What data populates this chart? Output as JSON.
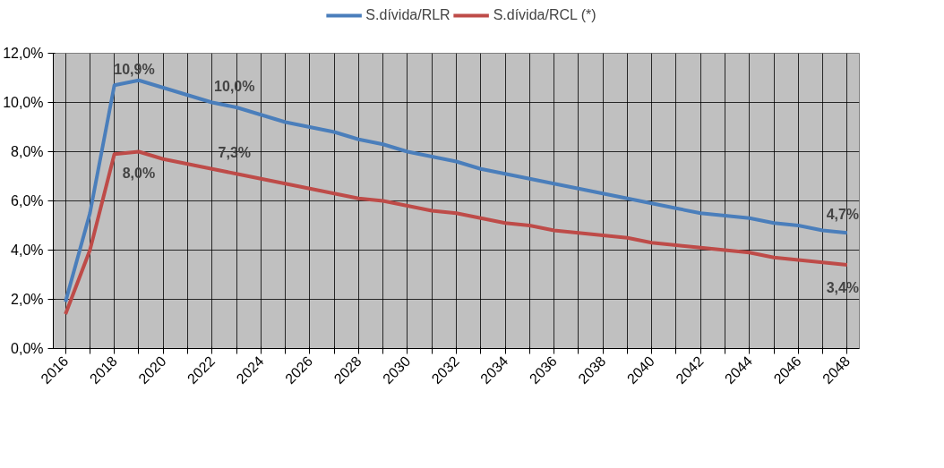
{
  "chart_data": {
    "type": "line",
    "x": [
      2016,
      2017,
      2018,
      2019,
      2020,
      2021,
      2022,
      2023,
      2024,
      2025,
      2026,
      2027,
      2028,
      2029,
      2030,
      2031,
      2032,
      2033,
      2034,
      2035,
      2036,
      2037,
      2038,
      2039,
      2040,
      2041,
      2042,
      2043,
      2044,
      2045,
      2046,
      2047,
      2048
    ],
    "series": [
      {
        "name": "S.dívida/RLR",
        "color": "#4a7ebb",
        "values": [
          1.9,
          5.5,
          10.7,
          10.9,
          10.6,
          10.3,
          10.0,
          9.8,
          9.5,
          9.2,
          9.0,
          8.8,
          8.5,
          8.3,
          8.0,
          7.8,
          7.6,
          7.3,
          7.1,
          6.9,
          6.7,
          6.5,
          6.3,
          6.1,
          5.9,
          5.7,
          5.5,
          5.4,
          5.3,
          5.1,
          5.0,
          4.8,
          4.7
        ]
      },
      {
        "name": "S.dívida/RCL (*)",
        "color": "#be4b48",
        "values": [
          1.4,
          4.0,
          7.9,
          8.0,
          7.7,
          7.5,
          7.3,
          7.1,
          6.9,
          6.7,
          6.5,
          6.3,
          6.1,
          6.0,
          5.8,
          5.6,
          5.5,
          5.3,
          5.1,
          5.0,
          4.8,
          4.7,
          4.6,
          4.5,
          4.3,
          4.2,
          4.1,
          4.0,
          3.9,
          3.7,
          3.6,
          3.5,
          3.4
        ]
      }
    ],
    "xlim": [
      2015.5,
      2048.5
    ],
    "xticks": [
      2016,
      {
        "value": 2017,
        "label": null
      },
      2018,
      {
        "value": 2019,
        "label": null
      },
      2020,
      {
        "value": 2021,
        "label": null
      },
      2022,
      {
        "value": 2023,
        "label": null
      },
      2024,
      {
        "value": 2025,
        "label": null
      },
      2026,
      {
        "value": 2027,
        "label": null
      },
      2028,
      {
        "value": 2029,
        "label": null
      },
      2030,
      {
        "value": 2031,
        "label": null
      },
      2032,
      {
        "value": 2033,
        "label": null
      },
      2034,
      {
        "value": 2035,
        "label": null
      },
      2036,
      {
        "value": 2037,
        "label": null
      },
      2038,
      {
        "value": 2039,
        "label": null
      },
      2040,
      {
        "value": 2041,
        "label": null
      },
      2042,
      {
        "value": 2043,
        "label": null
      },
      2044,
      {
        "value": 2045,
        "label": null
      },
      2046,
      {
        "value": 2047,
        "label": null
      },
      2048
    ],
    "ylim": [
      0,
      12
    ],
    "yticks": [
      {
        "value": 0,
        "label": "0,0%"
      },
      {
        "value": 2,
        "label": "2,0%"
      },
      {
        "value": 4,
        "label": "4,0%"
      },
      {
        "value": 6,
        "label": "6,0%"
      },
      {
        "value": 8,
        "label": "8,0%"
      },
      {
        "value": 10,
        "label": "10,0%"
      },
      {
        "value": 12,
        "label": "12,0%"
      }
    ],
    "annotations": [
      {
        "text": "10,9%",
        "x": 2019,
        "y": 10.9
      },
      {
        "text": "10,0%",
        "x": 2022,
        "y": 10.0
      },
      {
        "text": "7,3%",
        "x": 2022,
        "y": 7.3
      },
      {
        "text": "8,0%",
        "x": 2019,
        "y": 8.0
      },
      {
        "text": "4,7%",
        "x": 2048,
        "y": 4.7
      },
      {
        "text": "3,4%",
        "x": 2048,
        "y": 3.4
      }
    ],
    "grid": true,
    "legend": "top",
    "marker": "none",
    "line_style": "solid"
  }
}
